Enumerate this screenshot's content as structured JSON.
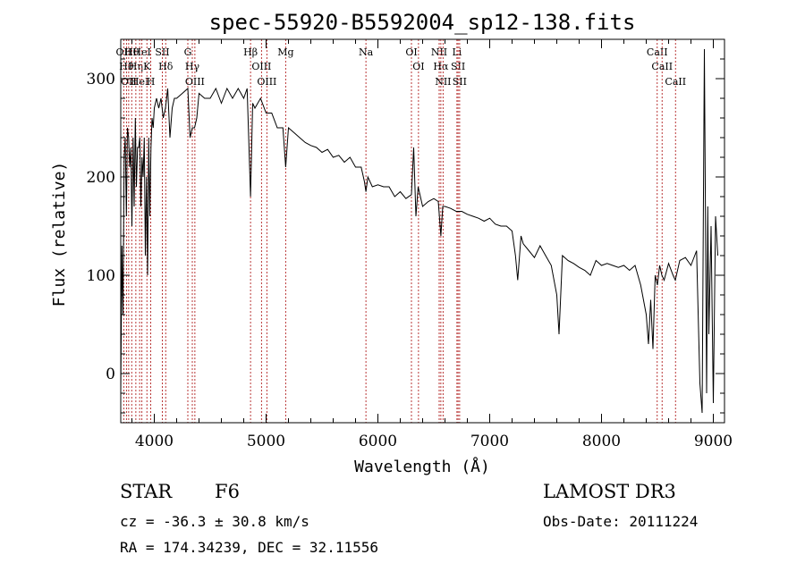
{
  "chart_data": {
    "type": "line",
    "title": "spec-55920-B5592004_sp12-138.fits",
    "xlabel": "Wavelength (Å)",
    "ylabel": "Flux (relative)",
    "xlim": [
      3700,
      9100
    ],
    "ylim": [
      -50,
      340
    ],
    "xticks": [
      4000,
      5000,
      6000,
      7000,
      8000,
      9000
    ],
    "yticks": [
      0,
      100,
      200,
      300
    ],
    "grid": false,
    "series": [
      {
        "x": [
          3700,
          3710,
          3720,
          3730,
          3740,
          3750,
          3760,
          3770,
          3780,
          3790,
          3800,
          3810,
          3820,
          3830,
          3840,
          3850,
          3860,
          3870,
          3880,
          3890,
          3900,
          3910,
          3920,
          3930,
          3940,
          3950,
          3960,
          3970,
          3980,
          3990,
          4000,
          4020,
          4040,
          4060,
          4080,
          4100,
          4120,
          4140,
          4160,
          4180,
          4200,
          4250,
          4300,
          4320,
          4340,
          4360,
          4380,
          4400,
          4450,
          4500,
          4550,
          4600,
          4650,
          4700,
          4750,
          4800,
          4830,
          4861,
          4880,
          4900,
          4950,
          5000,
          5050,
          5100,
          5150,
          5175,
          5200,
          5250,
          5300,
          5350,
          5400,
          5450,
          5500,
          5550,
          5600,
          5650,
          5700,
          5750,
          5800,
          5850,
          5880,
          5893,
          5910,
          5950,
          6000,
          6050,
          6100,
          6150,
          6200,
          6250,
          6300,
          6320,
          6340,
          6360,
          6380,
          6400,
          6450,
          6500,
          6540,
          6563,
          6580,
          6600,
          6650,
          6700,
          6750,
          6800,
          6850,
          6900,
          6950,
          7000,
          7050,
          7100,
          7150,
          7200,
          7230,
          7250,
          7280,
          7300,
          7350,
          7400,
          7450,
          7500,
          7550,
          7600,
          7620,
          7650,
          7700,
          7750,
          7800,
          7850,
          7900,
          7950,
          8000,
          8050,
          8100,
          8150,
          8200,
          8250,
          8300,
          8350,
          8400,
          8420,
          8440,
          8460,
          8480,
          8500,
          8520,
          8540,
          8560,
          8600,
          8640,
          8660,
          8700,
          8750,
          8800,
          8850,
          8880,
          8900,
          8920,
          8940,
          8950,
          8960,
          8980,
          9000,
          9020,
          9040
        ],
        "y": [
          -20,
          130,
          60,
          220,
          240,
          160,
          250,
          240,
          210,
          230,
          150,
          240,
          170,
          260,
          190,
          230,
          230,
          240,
          170,
          220,
          200,
          240,
          120,
          200,
          100,
          240,
          160,
          230,
          260,
          250,
          270,
          280,
          270,
          280,
          260,
          270,
          290,
          240,
          270,
          280,
          280,
          285,
          290,
          240,
          250,
          250,
          260,
          285,
          280,
          280,
          290,
          275,
          290,
          280,
          290,
          280,
          290,
          180,
          275,
          270,
          280,
          265,
          265,
          250,
          250,
          210,
          250,
          245,
          240,
          235,
          232,
          230,
          225,
          228,
          220,
          222,
          215,
          220,
          210,
          210,
          195,
          185,
          200,
          190,
          192,
          190,
          190,
          180,
          185,
          178,
          182,
          230,
          160,
          190,
          180,
          170,
          175,
          178,
          175,
          140,
          170,
          170,
          168,
          165,
          165,
          162,
          160,
          158,
          155,
          158,
          152,
          150,
          150,
          145,
          120,
          95,
          140,
          132,
          125,
          118,
          130,
          120,
          110,
          80,
          40,
          120,
          115,
          112,
          108,
          105,
          100,
          115,
          110,
          112,
          110,
          108,
          110,
          105,
          110,
          90,
          60,
          30,
          75,
          25,
          100,
          90,
          110,
          100,
          95,
          112,
          100,
          95,
          115,
          118,
          110,
          125,
          -10,
          -40,
          330,
          -20,
          170,
          40,
          150,
          -30,
          160,
          120
        ]
      }
    ],
    "lines": [
      {
        "wl": 3727,
        "label": "OII"
      },
      {
        "wl": 3751,
        "label": "Hθ"
      },
      {
        "wl": 3771,
        "label": "OII"
      },
      {
        "wl": 3798,
        "label": "Hθ"
      },
      {
        "wl": 3835,
        "label": "Hη"
      },
      {
        "wl": 3869,
        "label": "HeI"
      },
      {
        "wl": 3889,
        "label": "HeI"
      },
      {
        "wl": 3934,
        "label": "K"
      },
      {
        "wl": 3968,
        "label": "H"
      },
      {
        "wl": 4072,
        "label": "SII"
      },
      {
        "wl": 4102,
        "label": "Hδ"
      },
      {
        "wl": 4300,
        "label": "G"
      },
      {
        "wl": 4340,
        "label": "Hγ"
      },
      {
        "wl": 4363,
        "label": "OIII"
      },
      {
        "wl": 4861,
        "label": "Hβ"
      },
      {
        "wl": 4959,
        "label": "OIII"
      },
      {
        "wl": 5007,
        "label": "OIII"
      },
      {
        "wl": 5175,
        "label": "Mg"
      },
      {
        "wl": 5893,
        "label": "Na"
      },
      {
        "wl": 6300,
        "label": "OI"
      },
      {
        "wl": 6363,
        "label": "OI"
      },
      {
        "wl": 6548,
        "label": "NII"
      },
      {
        "wl": 6563,
        "label": "Hα"
      },
      {
        "wl": 6583,
        "label": "NII"
      },
      {
        "wl": 6707,
        "label": "Li"
      },
      {
        "wl": 6717,
        "label": "SII"
      },
      {
        "wl": 6731,
        "label": "SII"
      },
      {
        "wl": 8498,
        "label": "CaII"
      },
      {
        "wl": 8542,
        "label": "CaII"
      },
      {
        "wl": 8662,
        "label": "CaII"
      }
    ]
  },
  "info": {
    "class_label": "STAR",
    "subclass": "F6",
    "survey": "LAMOST DR3",
    "cz": "cz = -36.3 ± 30.8 km/s",
    "obs_date": "Obs-Date: 20111224",
    "coords": "RA = 174.34239, DEC =  32.11556"
  },
  "colors": {
    "spectrum": "#000000",
    "line_markers": "#b22222",
    "axes": "#000000"
  }
}
